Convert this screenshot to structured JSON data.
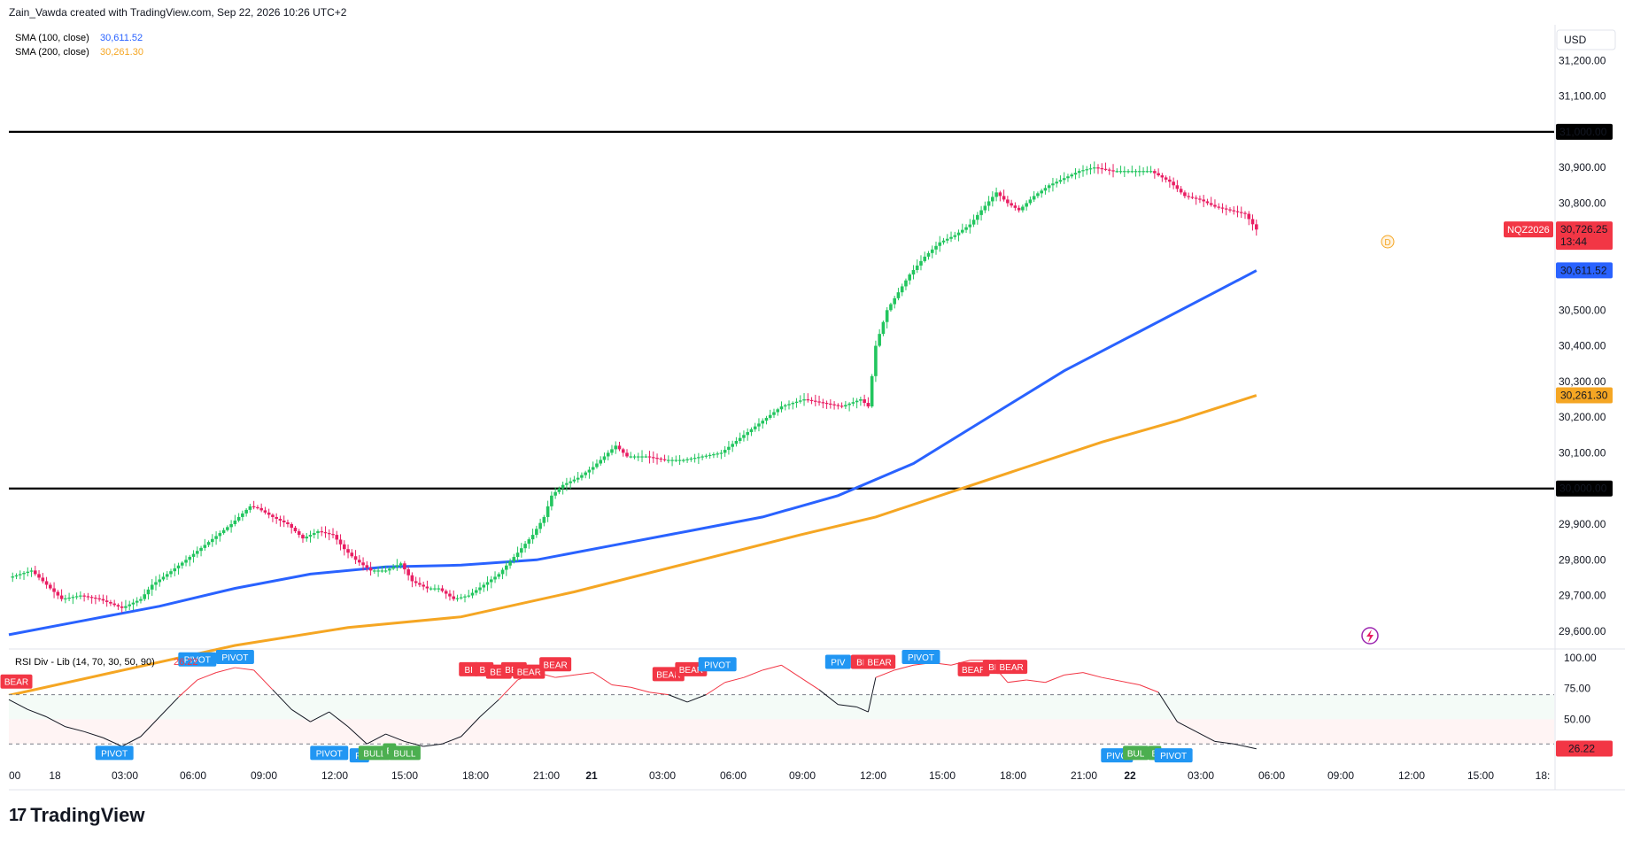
{
  "header": {
    "credit": "Zain_Vawda created with TradingView.com, Sep 22, 2026 10:26 UTC+2"
  },
  "legend": {
    "sma100": {
      "label": "SMA (100, close)",
      "value": "30,611.52",
      "color": "#2962ff"
    },
    "sma200": {
      "label": "SMA (200, close)",
      "value": "30,261.30",
      "color": "#f5a623"
    }
  },
  "currency": "USD",
  "symbol": {
    "name": "NQZ2026",
    "price": "30,726.25",
    "countdown": "13:44",
    "color": "#f23645"
  },
  "session_marker": "D",
  "rsi_legend": {
    "label": "RSI Div - Lib (14, 70, 30, 50, 90)",
    "value": "26.22"
  },
  "brand": "TradingView",
  "chart_data": {
    "type": "candlestick",
    "price_axis": {
      "ticks": [
        "31,200.00",
        "31,100.00",
        "31,000.00",
        "30,900.00",
        "30,800.00",
        "30,500.00",
        "30,400.00",
        "30,300.00",
        "30,200.00",
        "30,100.00",
        "30,000.00",
        "29,900.00",
        "29,800.00",
        "29,700.00",
        "29,600.00"
      ],
      "range": [
        29550,
        31300
      ]
    },
    "horizontal_levels": [
      31000,
      30000
    ],
    "level_labels": [
      "31,000.00",
      "30,000.00"
    ],
    "sma100_label": "30,611.52",
    "sma200_label": "30,261.30",
    "time_axis": [
      "00",
      "18",
      "03:00",
      "06:00",
      "09:00",
      "12:00",
      "15:00",
      "18:00",
      "21:00",
      "21",
      "03:00",
      "06:00",
      "09:00",
      "12:00",
      "15:00",
      "18:00",
      "21:00",
      "22",
      "03:00",
      "06:00",
      "09:00",
      "12:00",
      "15:00",
      "18:"
    ],
    "price_path": [
      [
        0,
        29750
      ],
      [
        6,
        29770
      ],
      [
        10,
        29730
      ],
      [
        14,
        29690
      ],
      [
        19,
        29700
      ],
      [
        24,
        29690
      ],
      [
        30,
        29665
      ],
      [
        35,
        29690
      ],
      [
        38,
        29730
      ],
      [
        42,
        29760
      ],
      [
        47,
        29800
      ],
      [
        53,
        29850
      ],
      [
        59,
        29900
      ],
      [
        64,
        29950
      ],
      [
        66,
        29945
      ],
      [
        70,
        29920
      ],
      [
        74,
        29900
      ],
      [
        78,
        29860
      ],
      [
        82,
        29880
      ],
      [
        86,
        29870
      ],
      [
        89,
        29830
      ],
      [
        92,
        29800
      ],
      [
        96,
        29770
      ],
      [
        100,
        29770
      ],
      [
        104,
        29790
      ],
      [
        107,
        29740
      ],
      [
        111,
        29720
      ],
      [
        114,
        29720
      ],
      [
        118,
        29690
      ],
      [
        122,
        29700
      ],
      [
        126,
        29730
      ],
      [
        130,
        29760
      ],
      [
        135,
        29820
      ],
      [
        139,
        29870
      ],
      [
        142,
        29920
      ],
      [
        144,
        29980
      ],
      [
        147,
        30010
      ],
      [
        151,
        30030
      ],
      [
        155,
        30060
      ],
      [
        158,
        30090
      ],
      [
        161,
        30120
      ],
      [
        164,
        30090
      ],
      [
        169,
        30090
      ],
      [
        174,
        30080
      ],
      [
        179,
        30080
      ],
      [
        184,
        30090
      ],
      [
        189,
        30100
      ],
      [
        195,
        30150
      ],
      [
        200,
        30190
      ],
      [
        205,
        30230
      ],
      [
        211,
        30250
      ],
      [
        216,
        30240
      ],
      [
        221,
        30230
      ],
      [
        226,
        30250
      ],
      [
        228,
        30230
      ],
      [
        230,
        30400
      ],
      [
        233,
        30500
      ],
      [
        236,
        30550
      ],
      [
        239,
        30600
      ],
      [
        243,
        30650
      ],
      [
        247,
        30690
      ],
      [
        251,
        30710
      ],
      [
        255,
        30740
      ],
      [
        258,
        30780
      ],
      [
        262,
        30830
      ],
      [
        265,
        30800
      ],
      [
        268,
        30780
      ],
      [
        272,
        30820
      ],
      [
        276,
        30850
      ],
      [
        280,
        30870
      ],
      [
        284,
        30890
      ],
      [
        288,
        30900
      ],
      [
        293,
        30890
      ],
      [
        298,
        30890
      ],
      [
        303,
        30890
      ],
      [
        308,
        30860
      ],
      [
        312,
        30820
      ],
      [
        316,
        30810
      ],
      [
        320,
        30790
      ],
      [
        324,
        30780
      ],
      [
        328,
        30770
      ],
      [
        331,
        30726
      ]
    ],
    "sma100_path": [
      [
        0,
        29590
      ],
      [
        20,
        29630
      ],
      [
        40,
        29670
      ],
      [
        60,
        29720
      ],
      [
        80,
        29760
      ],
      [
        100,
        29780
      ],
      [
        120,
        29785
      ],
      [
        140,
        29800
      ],
      [
        160,
        29840
      ],
      [
        180,
        29880
      ],
      [
        200,
        29920
      ],
      [
        220,
        29980
      ],
      [
        240,
        30070
      ],
      [
        260,
        30200
      ],
      [
        280,
        30330
      ],
      [
        300,
        30440
      ],
      [
        320,
        30550
      ],
      [
        331,
        30611
      ]
    ],
    "sma200_path": [
      [
        0,
        29420
      ],
      [
        30,
        29490
      ],
      [
        60,
        29560
      ],
      [
        90,
        29610
      ],
      [
        120,
        29640
      ],
      [
        150,
        29710
      ],
      [
        180,
        29790
      ],
      [
        210,
        29870
      ],
      [
        230,
        29920
      ],
      [
        250,
        29990
      ],
      [
        270,
        30060
      ],
      [
        290,
        30130
      ],
      [
        310,
        30190
      ],
      [
        331,
        30261
      ]
    ],
    "rsi": {
      "range": [
        10,
        105
      ],
      "ticks": [
        "100.00",
        "75.00",
        "50.00"
      ],
      "levels": {
        "upper": 70,
        "middle": 50,
        "lower": 30
      },
      "current_label": "26.22",
      "path": [
        [
          0,
          66
        ],
        [
          5,
          58
        ],
        [
          10,
          52
        ],
        [
          15,
          44
        ],
        [
          20,
          40
        ],
        [
          25,
          35
        ],
        [
          30,
          28
        ],
        [
          35,
          36
        ],
        [
          40,
          52
        ],
        [
          45,
          68
        ],
        [
          50,
          82
        ],
        [
          55,
          88
        ],
        [
          60,
          92
        ],
        [
          65,
          90
        ],
        [
          70,
          74
        ],
        [
          75,
          58
        ],
        [
          80,
          48
        ],
        [
          85,
          56
        ],
        [
          90,
          44
        ],
        [
          95,
          30
        ],
        [
          100,
          38
        ],
        [
          105,
          32
        ],
        [
          110,
          28
        ],
        [
          115,
          30
        ],
        [
          120,
          36
        ],
        [
          125,
          52
        ],
        [
          130,
          66
        ],
        [
          135,
          82
        ],
        [
          140,
          88
        ],
        [
          145,
          84
        ],
        [
          150,
          86
        ],
        [
          155,
          88
        ],
        [
          160,
          78
        ],
        [
          165,
          76
        ],
        [
          170,
          72
        ],
        [
          175,
          70
        ],
        [
          180,
          64
        ],
        [
          185,
          70
        ],
        [
          190,
          80
        ],
        [
          195,
          84
        ],
        [
          200,
          90
        ],
        [
          205,
          94
        ],
        [
          210,
          84
        ],
        [
          215,
          74
        ],
        [
          220,
          62
        ],
        [
          225,
          60
        ],
        [
          228,
          56
        ],
        [
          230,
          84
        ],
        [
          235,
          90
        ],
        [
          240,
          94
        ],
        [
          245,
          96
        ],
        [
          250,
          94
        ],
        [
          255,
          98
        ],
        [
          260,
          98
        ],
        [
          265,
          80
        ],
        [
          270,
          82
        ],
        [
          275,
          80
        ],
        [
          280,
          86
        ],
        [
          285,
          88
        ],
        [
          290,
          84
        ],
        [
          300,
          78
        ],
        [
          305,
          72
        ],
        [
          310,
          48
        ],
        [
          315,
          40
        ],
        [
          320,
          32
        ],
        [
          325,
          30
        ],
        [
          331,
          26
        ]
      ],
      "badges": [
        {
          "x": 2,
          "v": 80,
          "label": "BEAR",
          "kind": "bear"
        },
        {
          "x": 50,
          "v": 98,
          "label": "PIVOT",
          "kind": "pivot"
        },
        {
          "x": 60,
          "v": 100,
          "label": "PIVOT",
          "kind": "pivot"
        },
        {
          "x": 28,
          "v": 22,
          "label": "PIVOT",
          "kind": "pivot"
        },
        {
          "x": 122,
          "v": 90,
          "label": "BI",
          "kind": "bear"
        },
        {
          "x": 126,
          "v": 90,
          "label": "BI",
          "kind": "bear"
        },
        {
          "x": 130,
          "v": 88,
          "label": "BEA",
          "kind": "bear"
        },
        {
          "x": 134,
          "v": 90,
          "label": "BEA",
          "kind": "bear"
        },
        {
          "x": 138,
          "v": 88,
          "label": "BEAR",
          "kind": "bear"
        },
        {
          "x": 145,
          "v": 94,
          "label": "BEAR",
          "kind": "bear"
        },
        {
          "x": 85,
          "v": 22,
          "label": "PIVOT",
          "kind": "pivot"
        },
        {
          "x": 93,
          "v": 20,
          "label": "PI",
          "kind": "pivot"
        },
        {
          "x": 97,
          "v": 22,
          "label": "BULL",
          "kind": "bull"
        },
        {
          "x": 101,
          "v": 24,
          "label": "B",
          "kind": "bull"
        },
        {
          "x": 105,
          "v": 22,
          "label": "BULL",
          "kind": "bull"
        },
        {
          "x": 175,
          "v": 86,
          "label": "BEAR",
          "kind": "bear"
        },
        {
          "x": 181,
          "v": 90,
          "label": "BEAR",
          "kind": "bear"
        },
        {
          "x": 188,
          "v": 94,
          "label": "PIVOT",
          "kind": "pivot"
        },
        {
          "x": 220,
          "v": 96,
          "label": "PIV",
          "kind": "pivot"
        },
        {
          "x": 226,
          "v": 96,
          "label": "BI",
          "kind": "bear"
        },
        {
          "x": 231,
          "v": 96,
          "label": "BEAR",
          "kind": "bear"
        },
        {
          "x": 242,
          "v": 100,
          "label": "PIVOT",
          "kind": "pivot"
        },
        {
          "x": 256,
          "v": 90,
          "label": "BEAR",
          "kind": "bear"
        },
        {
          "x": 261,
          "v": 92,
          "label": "BI",
          "kind": "bear"
        },
        {
          "x": 266,
          "v": 92,
          "label": "BEAR",
          "kind": "bear"
        },
        {
          "x": 294,
          "v": 20,
          "label": "PIVO",
          "kind": "pivot"
        },
        {
          "x": 299,
          "v": 22,
          "label": "BUL",
          "kind": "bull"
        },
        {
          "x": 304,
          "v": 22,
          "label": "B",
          "kind": "bull"
        },
        {
          "x": 309,
          "v": 20,
          "label": "PIVOT",
          "kind": "pivot"
        }
      ]
    }
  },
  "colors": {
    "up": "#089981",
    "up_body": "#22c55e",
    "down": "#f23645",
    "down_body": "#e91e63",
    "grid": "#e0e3eb",
    "level": "#000000"
  }
}
